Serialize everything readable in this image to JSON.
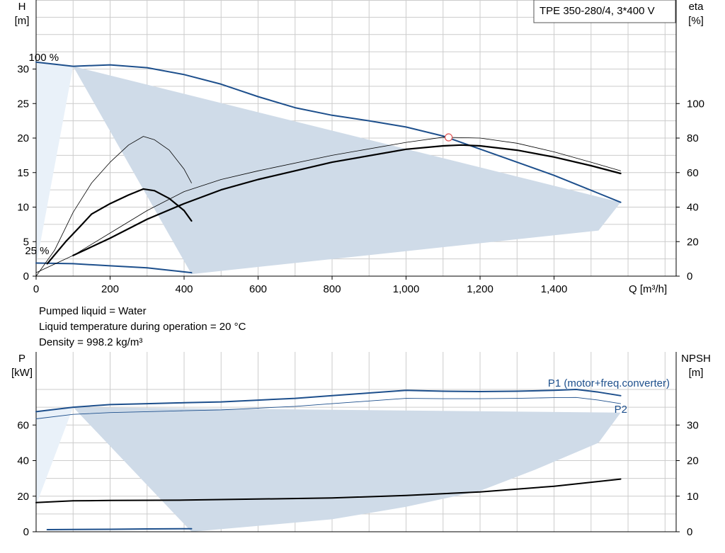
{
  "liquid_info": {
    "pumped_liquid": "Pumped liquid = Water",
    "temperature": "Liquid temperature during operation = 20 °C",
    "density": "Density = 998.2 kg/m³"
  },
  "colors": {
    "curve_blue": "#1d4f8c",
    "fill_region": "#cfdbe8",
    "fill_light": "#e9f1f9",
    "grid": "#cccccc"
  },
  "chart_data": [
    {
      "type": "line",
      "id": "head",
      "title": "TPE 350-280/4, 3*400 V",
      "xlabel": "Q [m³/h]",
      "ylabel": "H\n[m]",
      "y2label": "eta\n[%]",
      "xlim": [
        0,
        1730
      ],
      "ylim": [
        0,
        40
      ],
      "y2lim": [
        0,
        160
      ],
      "x_ticks": [
        0,
        200,
        400,
        600,
        800,
        1000,
        1200,
        1400
      ],
      "x_tick_labels": [
        "0",
        "200",
        "400",
        "600",
        "800",
        "1,000",
        "1,200",
        "1,400"
      ],
      "y_ticks": [
        0,
        5,
        10,
        15,
        20,
        25,
        30
      ],
      "y2_ticks": [
        0,
        20,
        40,
        60,
        80,
        100
      ],
      "grid": true,
      "annotations": [
        {
          "text": "100 %",
          "x": -20,
          "y": 31.2
        },
        {
          "text": "25 %",
          "x": -30,
          "y": 3.2
        }
      ],
      "operating_point": {
        "x": 1115,
        "y": 20.1
      },
      "region_main": [
        [
          100,
          30.4
        ],
        [
          420,
          0.3
        ],
        [
          1520,
          6.6
        ],
        [
          1580,
          10.7
        ]
      ],
      "region_light": [
        [
          0,
          31.0
        ],
        [
          100,
          30.4
        ],
        [
          0,
          1.5
        ]
      ],
      "series": [
        {
          "name": "100 %",
          "axis": "left",
          "role": "head_max",
          "points": [
            [
              0,
              31.0
            ],
            [
              100,
              30.4
            ],
            [
              200,
              30.6
            ],
            [
              300,
              30.2
            ],
            [
              400,
              29.2
            ],
            [
              500,
              27.8
            ],
            [
              600,
              26.0
            ],
            [
              700,
              24.4
            ],
            [
              800,
              23.3
            ],
            [
              900,
              22.5
            ],
            [
              1000,
              21.6
            ],
            [
              1100,
              20.3
            ],
            [
              1200,
              18.4
            ],
            [
              1300,
              16.5
            ],
            [
              1400,
              14.6
            ],
            [
              1460,
              13.3
            ],
            [
              1520,
              12.0
            ],
            [
              1580,
              10.7
            ]
          ]
        },
        {
          "name": "25 %",
          "axis": "left",
          "role": "head_min",
          "points": [
            [
              0,
              1.9
            ],
            [
              100,
              1.8
            ],
            [
              200,
              1.5
            ],
            [
              300,
              1.2
            ],
            [
              420,
              0.5
            ]
          ]
        },
        {
          "name": "",
          "axis": "right",
          "role": "eta_max_thin",
          "points": [
            [
              0,
              2
            ],
            [
              100,
              12
            ],
            [
              200,
              25
            ],
            [
              300,
              38
            ],
            [
              400,
              49
            ],
            [
              500,
              56
            ],
            [
              600,
              61
            ],
            [
              800,
              70
            ],
            [
              1000,
              77.5
            ],
            [
              1100,
              80.5
            ],
            [
              1200,
              80
            ],
            [
              1300,
              77
            ],
            [
              1400,
              72
            ],
            [
              1500,
              66
            ],
            [
              1580,
              61
            ]
          ]
        },
        {
          "name": "",
          "axis": "right",
          "role": "eta_max_thick",
          "points": [
            [
              100,
              12
            ],
            [
              200,
              22
            ],
            [
              300,
              33
            ],
            [
              400,
              42
            ],
            [
              500,
              50
            ],
            [
              600,
              56
            ],
            [
              800,
              66
            ],
            [
              1000,
              73.5
            ],
            [
              1100,
              75.5
            ],
            [
              1150,
              76
            ],
            [
              1200,
              75.5
            ],
            [
              1300,
              73
            ],
            [
              1400,
              69
            ],
            [
              1500,
              64
            ],
            [
              1580,
              59.5
            ]
          ]
        },
        {
          "name": "",
          "axis": "right",
          "role": "eta_min_thin",
          "points": [
            [
              0,
              0
            ],
            [
              50,
              15
            ],
            [
              100,
              37
            ],
            [
              150,
              54
            ],
            [
              200,
              66
            ],
            [
              250,
              76
            ],
            [
              290,
              81
            ],
            [
              320,
              79
            ],
            [
              360,
              73
            ],
            [
              400,
              62
            ],
            [
              420,
              54
            ]
          ]
        },
        {
          "name": "",
          "axis": "right",
          "role": "eta_min_thick",
          "points": [
            [
              30,
              7.2
            ],
            [
              80,
              20
            ],
            [
              120,
              29
            ],
            [
              150,
              36
            ],
            [
              200,
              42
            ],
            [
              250,
              47
            ],
            [
              290,
              50.5
            ],
            [
              320,
              49.5
            ],
            [
              360,
              45
            ],
            [
              400,
              38
            ],
            [
              420,
              32
            ]
          ]
        }
      ]
    },
    {
      "type": "line",
      "id": "power",
      "ylabel": "P\n[kW]",
      "y2label": "NPSH\n[m]",
      "xlim": [
        0,
        1730
      ],
      "ylim": [
        0,
        80
      ],
      "y2lim": [
        0,
        40
      ],
      "y_ticks": [
        0,
        20,
        40,
        60
      ],
      "y2_ticks": [
        0,
        10,
        20,
        30
      ],
      "grid": true,
      "region_main": [
        [
          100,
          70
        ],
        [
          420,
          0
        ],
        [
          800,
          7
        ],
        [
          1000,
          14
        ],
        [
          1200,
          23
        ],
        [
          1350,
          35
        ],
        [
          1520,
          50
        ],
        [
          1580,
          67
        ]
      ],
      "region_light": [
        [
          0,
          67.5
        ],
        [
          100,
          70
        ],
        [
          0,
          15
        ]
      ],
      "series": [
        {
          "name": "P1 (motor+freq.converter)",
          "axis": "left",
          "role": "p1",
          "points": [
            [
              0,
              67.5
            ],
            [
              100,
              70
            ],
            [
              200,
              71.5
            ],
            [
              300,
              72
            ],
            [
              400,
              72.5
            ],
            [
              500,
              73
            ],
            [
              600,
              74
            ],
            [
              700,
              75
            ],
            [
              800,
              76.5
            ],
            [
              900,
              78
            ],
            [
              1000,
              79.5
            ],
            [
              1100,
              79
            ],
            [
              1200,
              78.8
            ],
            [
              1300,
              79
            ],
            [
              1400,
              79.5
            ],
            [
              1460,
              80
            ],
            [
              1520,
              78.5
            ],
            [
              1580,
              76.5
            ]
          ]
        },
        {
          "name": "P2",
          "axis": "left",
          "role": "p2",
          "points": [
            [
              0,
              63.5
            ],
            [
              100,
              66
            ],
            [
              200,
              67
            ],
            [
              300,
              67.5
            ],
            [
              400,
              68
            ],
            [
              500,
              68.5
            ],
            [
              600,
              69.5
            ],
            [
              700,
              70.5
            ],
            [
              800,
              72
            ],
            [
              900,
              73.5
            ],
            [
              1000,
              75
            ],
            [
              1100,
              74.8
            ],
            [
              1200,
              74.8
            ],
            [
              1300,
              75
            ],
            [
              1400,
              75.4
            ],
            [
              1460,
              75.5
            ],
            [
              1520,
              74
            ],
            [
              1580,
              72
            ]
          ]
        },
        {
          "name": "",
          "axis": "right",
          "role": "npsh_max",
          "points": [
            [
              0,
              8.2
            ],
            [
              100,
              8.7
            ],
            [
              200,
              8.8
            ],
            [
              400,
              8.9
            ],
            [
              600,
              9.2
            ],
            [
              800,
              9.5
            ],
            [
              1000,
              10.2
            ],
            [
              1200,
              11.2
            ],
            [
              1400,
              12.8
            ],
            [
              1580,
              14.8
            ]
          ]
        },
        {
          "name": "",
          "axis": "left",
          "role": "power_min",
          "points": [
            [
              30,
              1.2
            ],
            [
              100,
              1.3
            ],
            [
              200,
              1.4
            ],
            [
              300,
              1.6
            ],
            [
              420,
              1.7
            ]
          ]
        }
      ]
    }
  ]
}
